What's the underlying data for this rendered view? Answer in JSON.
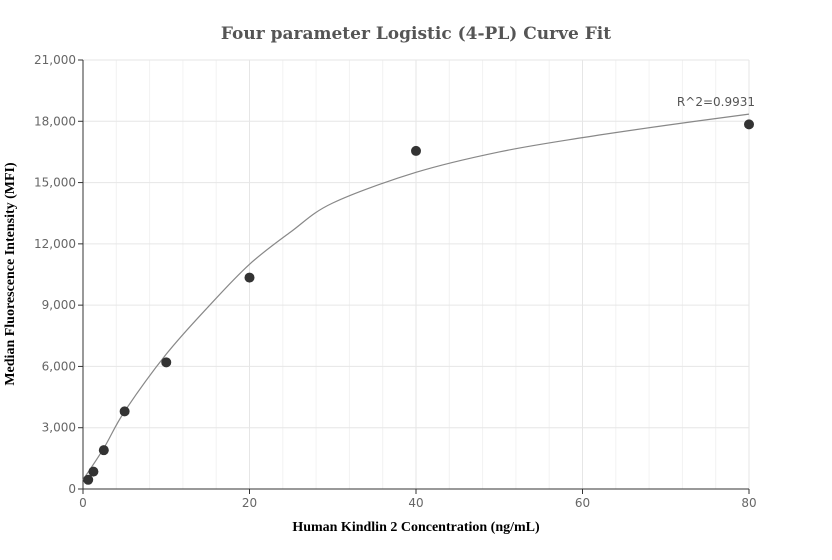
{
  "chart_data": {
    "type": "scatter",
    "title": "Four parameter Logistic (4-PL) Curve Fit",
    "xlabel": "Human Kindlin 2 Concentration (ng/mL)",
    "ylabel": "Median Fluorescence Intensity (MFI)",
    "xlim": [
      0,
      80
    ],
    "ylim": [
      0,
      21000
    ],
    "x_ticks": [
      0,
      20,
      40,
      60,
      80
    ],
    "x_tick_labels": [
      "0",
      "20",
      "40",
      "60",
      "80"
    ],
    "y_ticks": [
      0,
      3000,
      6000,
      9000,
      12000,
      15000,
      18000,
      21000
    ],
    "y_tick_labels": [
      "0",
      "3,000",
      "6,000",
      "9,000",
      "12,000",
      "15,000",
      "18,000",
      "21,000"
    ],
    "grid": true,
    "series": [
      {
        "type": "scatter",
        "x": [
          0.625,
          1.25,
          2.5,
          5,
          10,
          20,
          40,
          80
        ],
        "y": [
          450,
          850,
          1900,
          3800,
          6200,
          10350,
          16550,
          17850
        ],
        "color": "#333333"
      },
      {
        "type": "line",
        "x": [
          0,
          2.5,
          5,
          10,
          15,
          20,
          25,
          30,
          40,
          50,
          60,
          70,
          80
        ],
        "y": [
          450,
          2000,
          3800,
          6600,
          8900,
          11000,
          12600,
          14000,
          15500,
          16500,
          17200,
          17800,
          18350
        ],
        "color": "#888888"
      }
    ],
    "annotations": [
      {
        "text": "R^2=0.9931",
        "x": 80,
        "y": 18350
      }
    ]
  }
}
